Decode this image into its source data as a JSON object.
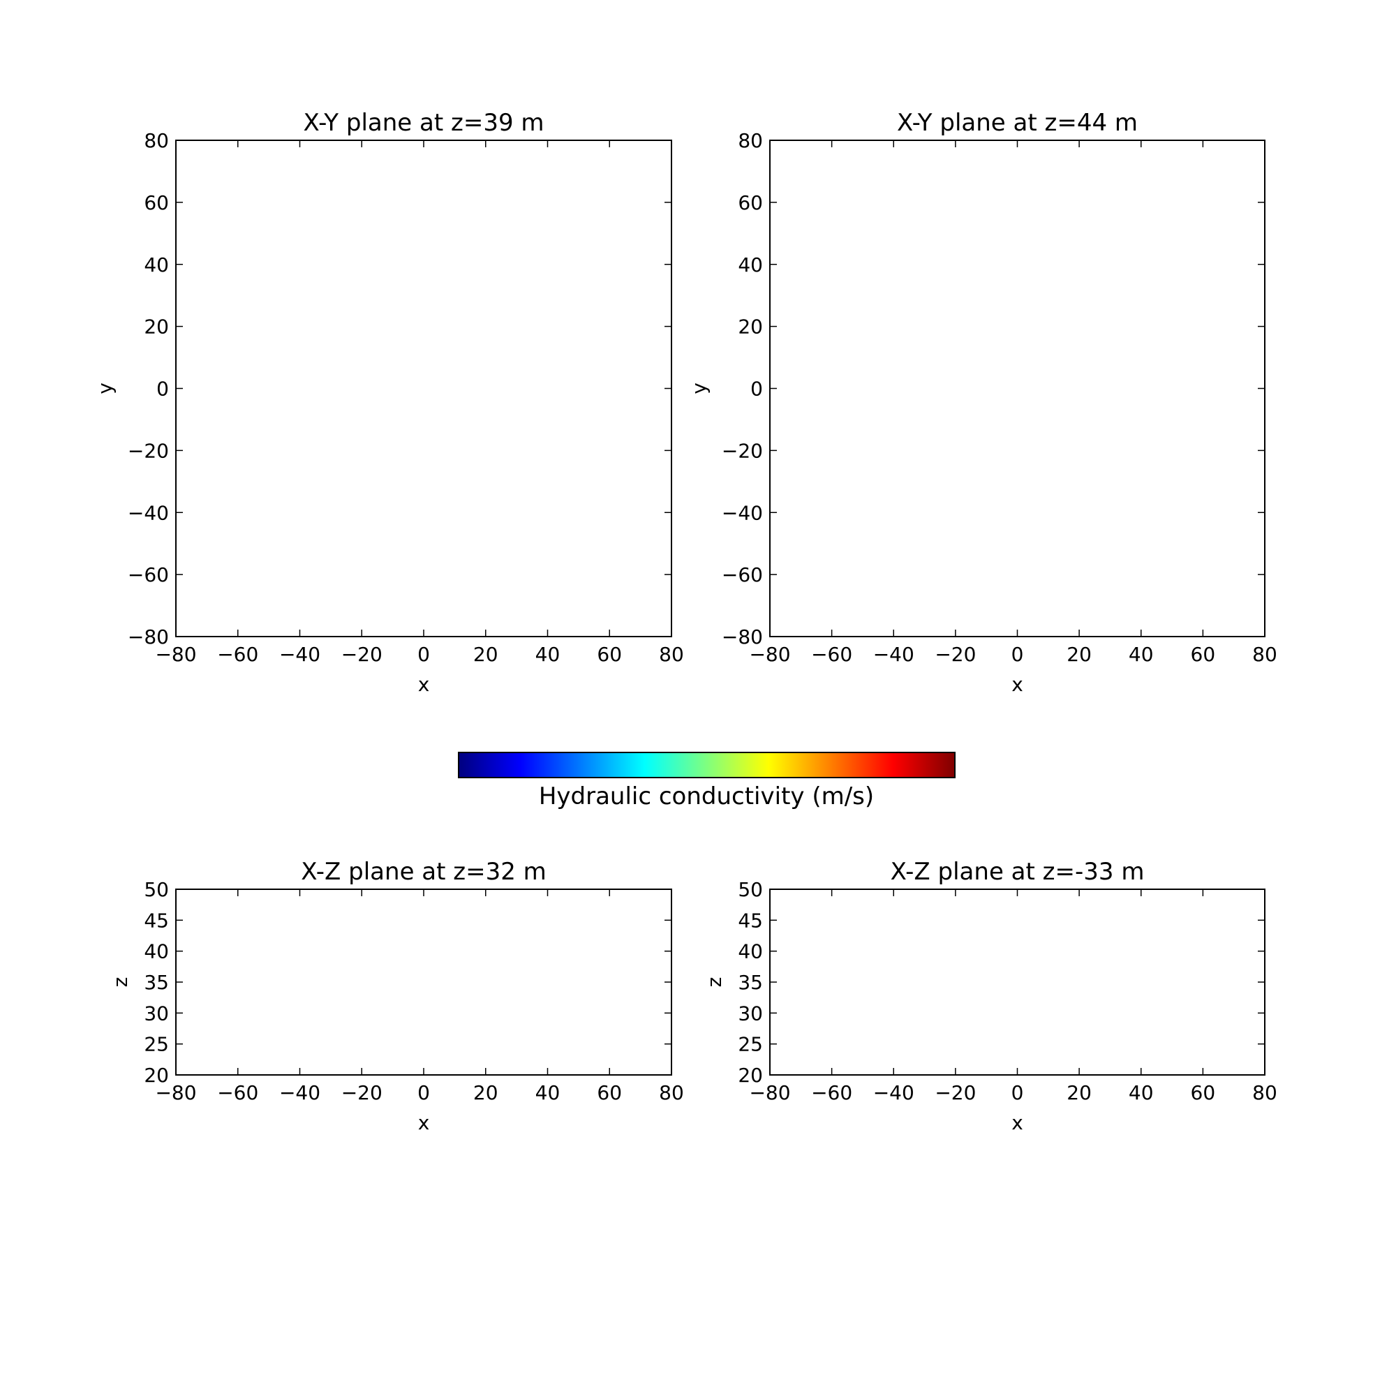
{
  "chart_data": [
    {
      "type": "heatmap",
      "title": "X-Y plane at z=39 m",
      "xlabel": "x",
      "ylabel": "y",
      "xlim": [
        -80,
        80
      ],
      "ylim": [
        -80,
        80
      ],
      "xticks": [
        -80,
        -60,
        -40,
        -20,
        0,
        20,
        40,
        60,
        80
      ],
      "yticks": [
        -80,
        -60,
        -40,
        -20,
        0,
        20,
        40,
        60,
        80
      ],
      "values": [],
      "grid": false
    },
    {
      "type": "heatmap",
      "title": "X-Y plane at z=44 m",
      "xlabel": "x",
      "ylabel": "y",
      "xlim": [
        -80,
        80
      ],
      "ylim": [
        -80,
        80
      ],
      "xticks": [
        -80,
        -60,
        -40,
        -20,
        0,
        20,
        40,
        60,
        80
      ],
      "yticks": [
        -80,
        -60,
        -40,
        -20,
        0,
        20,
        40,
        60,
        80
      ],
      "values": [],
      "grid": false
    },
    {
      "type": "heatmap",
      "title": "X-Z plane at z=32 m",
      "xlabel": "x",
      "ylabel": "z",
      "xlim": [
        -80,
        80
      ],
      "ylim": [
        20,
        50
      ],
      "xticks": [
        -80,
        -60,
        -40,
        -20,
        0,
        20,
        40,
        60,
        80
      ],
      "yticks": [
        20,
        25,
        30,
        35,
        40,
        45,
        50
      ],
      "values": [],
      "grid": false
    },
    {
      "type": "heatmap",
      "title": "X-Z plane at z=-33 m",
      "xlabel": "x",
      "ylabel": "z",
      "xlim": [
        -80,
        80
      ],
      "ylim": [
        20,
        50
      ],
      "xticks": [
        -80,
        -60,
        -40,
        -20,
        0,
        20,
        40,
        60,
        80
      ],
      "yticks": [
        20,
        25,
        30,
        35,
        40,
        45,
        50
      ],
      "values": [],
      "grid": false
    }
  ],
  "colorbar": {
    "label": "Hydraulic conductivity (m/s)",
    "colormap": "jet",
    "colors": [
      "#00007f",
      "#0000ff",
      "#007fff",
      "#00ffff",
      "#7fff7f",
      "#ffff00",
      "#ff7f00",
      "#ff0000",
      "#7f0000"
    ],
    "orientation": "horizontal"
  }
}
